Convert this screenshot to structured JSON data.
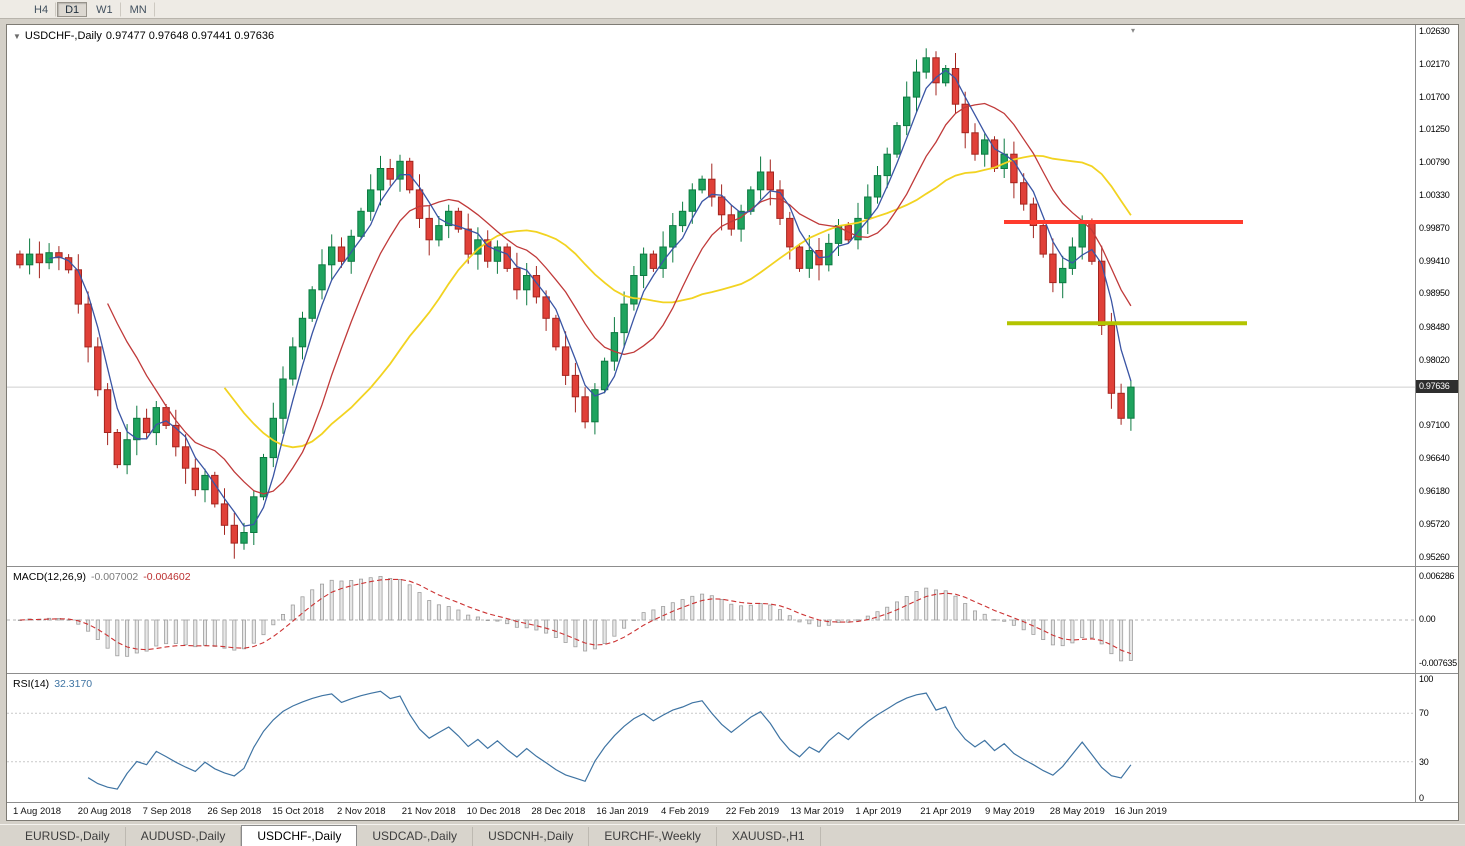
{
  "toolbar": {
    "timeframe_buttons": [
      "H4",
      "D1",
      "W1",
      "MN"
    ],
    "active_timeframe": "D1"
  },
  "chart_data": {
    "type": "candlestick",
    "symbol": "USDCHF-,Daily",
    "ohlc_display": "0.97477 0.97648 0.97441 0.97636",
    "current_price": "0.97636",
    "price_axis_range": [
      0.9513,
      1.0271
    ],
    "price_axis_labels": [
      "1.02630",
      "1.02170",
      "1.01700",
      "1.01250",
      "1.00790",
      "1.00330",
      "0.99870",
      "0.99410",
      "0.98950",
      "0.98480",
      "0.98020",
      "0.97100",
      "0.96640",
      "0.96180",
      "0.95720",
      "0.95260"
    ],
    "x_axis_labels": [
      "1 Aug 2018",
      "20 Aug 2018",
      "7 Sep 2018",
      "26 Sep 2018",
      "15 Oct 2018",
      "2 Nov 2018",
      "21 Nov 2018",
      "10 Dec 2018",
      "28 Dec 2018",
      "16 Jan 2019",
      "4 Feb 2019",
      "22 Feb 2019",
      "13 Mar 2019",
      "1 Apr 2019",
      "21 Apr 2019",
      "9 May 2019",
      "28 May 2019",
      "16 Jun 2019"
    ],
    "closes": [
      0.9935,
      0.995,
      0.9938,
      0.9952,
      0.9945,
      0.9928,
      0.988,
      0.982,
      0.976,
      0.97,
      0.9655,
      0.969,
      0.972,
      0.97,
      0.9735,
      0.971,
      0.968,
      0.965,
      0.962,
      0.964,
      0.96,
      0.957,
      0.9545,
      0.956,
      0.961,
      0.9665,
      0.972,
      0.9775,
      0.982,
      0.986,
      0.99,
      0.9935,
      0.996,
      0.994,
      0.9975,
      1.001,
      1.004,
      1.007,
      1.0055,
      1.008,
      1.004,
      1.0,
      0.997,
      0.999,
      1.001,
      0.9985,
      0.995,
      0.997,
      0.994,
      0.996,
      0.993,
      0.99,
      0.992,
      0.989,
      0.986,
      0.982,
      0.978,
      0.975,
      0.9715,
      0.976,
      0.98,
      0.984,
      0.988,
      0.992,
      0.995,
      0.993,
      0.996,
      0.999,
      1.001,
      1.004,
      1.0055,
      1.003,
      1.0005,
      0.9985,
      1.001,
      1.004,
      1.0065,
      1.004,
      1.0,
      0.996,
      0.993,
      0.9955,
      0.9935,
      0.9965,
      0.999,
      0.997,
      1.0,
      1.003,
      1.006,
      1.009,
      1.013,
      1.017,
      1.0205,
      1.0225,
      1.019,
      1.021,
      1.016,
      1.012,
      1.009,
      1.011,
      1.007,
      1.009,
      1.005,
      1.002,
      0.999,
      0.995,
      0.991,
      0.993,
      0.996,
      0.9995,
      0.994,
      0.985,
      0.9755,
      0.972,
      0.97636
    ],
    "colors": {
      "up": "#1fa35e",
      "up_border": "#0c7a41",
      "down": "#e04038",
      "down_border": "#a3251f",
      "ma_fast": "#3a55a4",
      "ma_mid": "#c03a3a",
      "ma_slow": "#f2d321",
      "macd_hist": "#9f9f9f",
      "macd_signal": "#cc3333",
      "rsi_line": "#3f74a3"
    },
    "objects": [
      {
        "name": "bid-price-line",
        "price": 0.97636,
        "x1": 0,
        "x2": 1,
        "color": "#cfcfcf",
        "width": 1
      },
      {
        "name": "resistance-hline",
        "price": 0.9995,
        "x1": 0.708,
        "x2": 0.878,
        "color": "#ff3b2d",
        "width": 4
      },
      {
        "name": "support-hline",
        "price": 0.9853,
        "x1": 0.71,
        "x2": 0.881,
        "color": "#b3c400",
        "width": 4
      }
    ],
    "macd": {
      "label": "MACD(12,26,9)",
      "value_main": "-0.007002",
      "value_signal": "-0.004602",
      "axis_labels": [
        "0.006286",
        "0.00",
        "-0.007635"
      ]
    },
    "rsi": {
      "label": "RSI(14)",
      "value": "32.3170",
      "axis_labels": [
        "100",
        "70",
        "30",
        "0"
      ],
      "levels": [
        70,
        30
      ]
    }
  },
  "tabs": [
    {
      "label": "EURUSD-,Daily",
      "active": false
    },
    {
      "label": "AUDUSD-,Daily",
      "active": false
    },
    {
      "label": "USDCHF-,Daily",
      "active": true
    },
    {
      "label": "USDCAD-,Daily",
      "active": false
    },
    {
      "label": "USDCNH-,Daily",
      "active": false
    },
    {
      "label": "EURCHF-,Weekly",
      "active": false
    },
    {
      "label": "XAUUSD-,H1",
      "active": false
    }
  ]
}
